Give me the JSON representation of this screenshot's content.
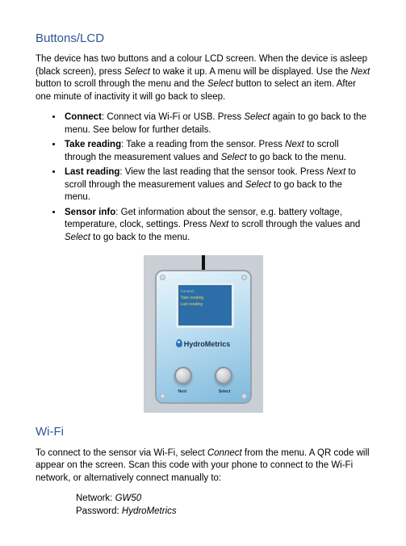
{
  "section1": {
    "heading": "Buttons/LCD",
    "intro_parts": [
      "The device has two buttons and a colour LCD screen. When the device is asleep (black screen), press ",
      "Select",
      " to wake it up. A menu will be displayed. Use the ",
      "Next",
      " button to scroll through the menu and the ",
      "Select",
      " button to select an item. After one minute of inactivity it will go back to sleep."
    ],
    "items": [
      {
        "term": "Connect",
        "rest": [
          ": Connect via Wi-Fi or USB. Press ",
          "Select",
          " again to go back to the menu. See below for further details."
        ]
      },
      {
        "term": "Take reading",
        "rest": [
          ": Take a reading from the sensor. Press ",
          "Next",
          " to scroll through the measurement values and ",
          "Select",
          " to go back to the menu."
        ]
      },
      {
        "term": "Last reading",
        "rest": [
          ": View the last reading that the sensor took. Press ",
          "Next",
          " to scroll through the measurement values and ",
          "Select",
          " to go back to the menu."
        ]
      },
      {
        "term": "Sensor info",
        "rest": [
          ": Get information about the sensor, e.g. battery voltage, temperature, clock, settings. Press ",
          "Next",
          " to scroll through the values and ",
          "Select",
          " to go back to the menu."
        ]
      }
    ]
  },
  "device": {
    "brand": "HydroMetrics",
    "screen_lines": [
      "Connect",
      "Take reading",
      "Last reading"
    ],
    "button_left": "Next",
    "button_right": "Select",
    "colors": {
      "bg": "#c9cfd4",
      "box_grad_a": "#e9f4fb",
      "box_grad_b": "#7fb9dd",
      "screen": "#2b6ea8",
      "text": "#17324a"
    }
  },
  "section2": {
    "heading": "Wi-Fi",
    "intro_parts": [
      "To connect to the sensor via Wi-Fi, select ",
      "Connect",
      " from the menu. A QR code will appear on the screen. Scan this code with your phone to connect to the Wi-Fi network, or alternatively connect manually to:"
    ],
    "network_label": "Network: ",
    "network_value": "GW50",
    "password_label": "Password: ",
    "password_value": "HydroMetrics"
  }
}
